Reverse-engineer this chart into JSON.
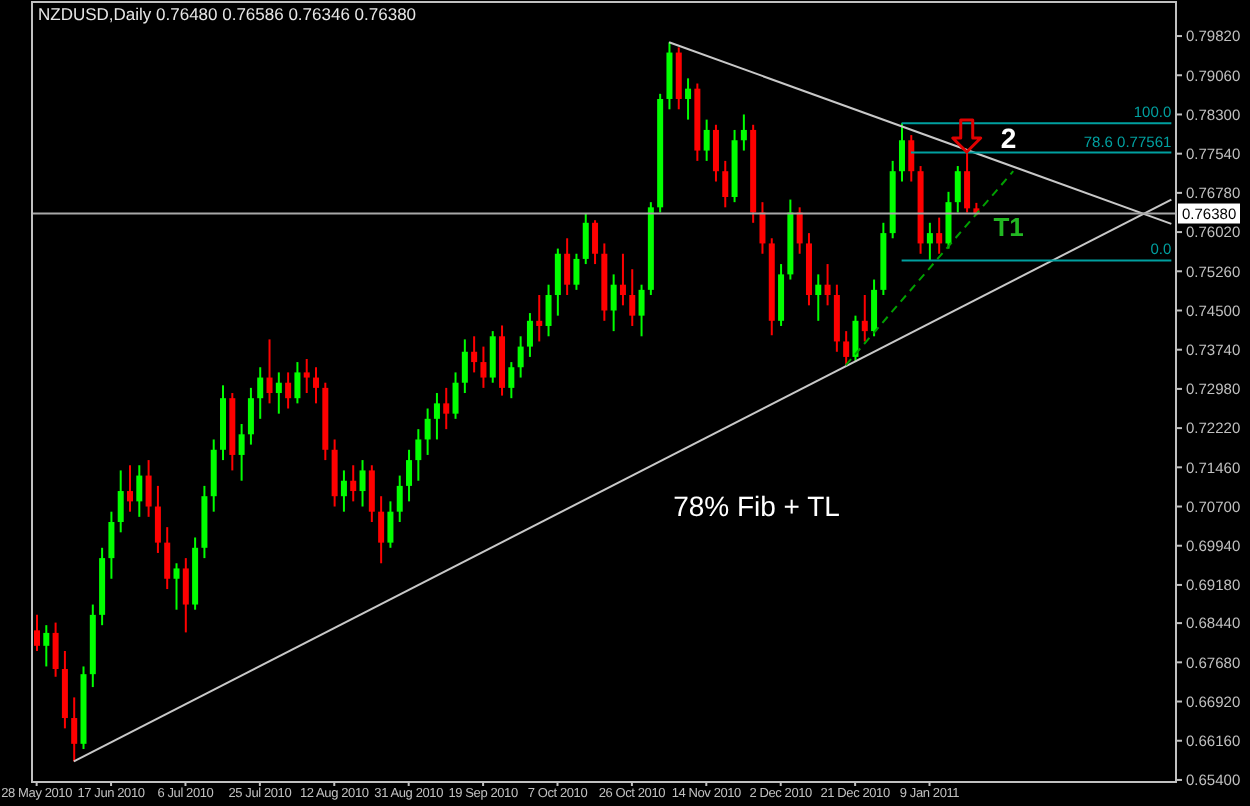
{
  "chart_data": {
    "type": "candlestick",
    "title": "NZDUSD,Daily 0.76480 0.76586 0.76346 0.76380",
    "categories": [
      "28 May 2010",
      null,
      null,
      null,
      null,
      null,
      null,
      null,
      "17 Jun 2010",
      null,
      null,
      null,
      null,
      null,
      null,
      null,
      "6 Jul 2010",
      null,
      null,
      null,
      null,
      null,
      null,
      null,
      "25 Jul 2010",
      null,
      null,
      null,
      null,
      null,
      null,
      null,
      "12 Aug 2010",
      null,
      null,
      null,
      null,
      null,
      null,
      null,
      "31 Aug 2010",
      null,
      null,
      null,
      null,
      null,
      null,
      null,
      "19 Sep 2010",
      null,
      null,
      null,
      null,
      null,
      null,
      null,
      "7 Oct 2010",
      null,
      null,
      null,
      null,
      null,
      null,
      null,
      "26 Oct 2010",
      null,
      null,
      null,
      null,
      null,
      null,
      null,
      "14 Nov 2010",
      null,
      null,
      null,
      null,
      null,
      null,
      null,
      "2 Dec 2010",
      null,
      null,
      null,
      null,
      null,
      null,
      null,
      "21 Dec 2010",
      null,
      null,
      null,
      null,
      null,
      null,
      null,
      "9 Jan 2011",
      null,
      null,
      null,
      null,
      null,
      null,
      null,
      null,
      null,
      null,
      null,
      null,
      null,
      null,
      null,
      null,
      null,
      null,
      null,
      null,
      null,
      null,
      null,
      null,
      null,
      null
    ],
    "ohlc": [
      [
        0.683,
        0.686,
        0.679,
        0.68
      ],
      [
        0.68,
        0.684,
        0.676,
        0.6825
      ],
      [
        0.6825,
        0.6845,
        0.674,
        0.6755
      ],
      [
        0.6755,
        0.679,
        0.664,
        0.666
      ],
      [
        0.666,
        0.67,
        0.6576,
        0.661
      ],
      [
        0.661,
        0.676,
        0.66,
        0.6745
      ],
      [
        0.6745,
        0.688,
        0.672,
        0.686
      ],
      [
        0.686,
        0.699,
        0.684,
        0.697
      ],
      [
        0.697,
        0.706,
        0.693,
        0.704
      ],
      [
        0.704,
        0.714,
        0.702,
        0.71
      ],
      [
        0.71,
        0.715,
        0.706,
        0.708
      ],
      [
        0.708,
        0.715,
        0.705,
        0.713
      ],
      [
        0.713,
        0.716,
        0.705,
        0.707
      ],
      [
        0.707,
        0.711,
        0.698,
        0.7
      ],
      [
        0.7,
        0.703,
        0.691,
        0.693
      ],
      [
        0.693,
        0.696,
        0.687,
        0.695
      ],
      [
        0.695,
        0.697,
        0.6826,
        0.688
      ],
      [
        0.688,
        0.701,
        0.687,
        0.699
      ],
      [
        0.699,
        0.711,
        0.697,
        0.709
      ],
      [
        0.709,
        0.72,
        0.706,
        0.718
      ],
      [
        0.718,
        0.7305,
        0.716,
        0.728
      ],
      [
        0.728,
        0.729,
        0.714,
        0.717
      ],
      [
        0.717,
        0.723,
        0.712,
        0.721
      ],
      [
        0.721,
        0.73,
        0.719,
        0.728
      ],
      [
        0.728,
        0.734,
        0.724,
        0.732
      ],
      [
        0.732,
        0.7394,
        0.727,
        0.729
      ],
      [
        0.729,
        0.733,
        0.725,
        0.731
      ],
      [
        0.731,
        0.733,
        0.726,
        0.728
      ],
      [
        0.728,
        0.735,
        0.727,
        0.733
      ],
      [
        0.733,
        0.7356,
        0.729,
        0.732
      ],
      [
        0.732,
        0.734,
        0.727,
        0.73
      ],
      [
        0.73,
        0.731,
        0.716,
        0.718
      ],
      [
        0.718,
        0.72,
        0.707,
        0.709
      ],
      [
        0.709,
        0.714,
        0.706,
        0.712
      ],
      [
        0.712,
        0.715,
        0.708,
        0.71
      ],
      [
        0.71,
        0.716,
        0.707,
        0.714
      ],
      [
        0.714,
        0.715,
        0.704,
        0.706
      ],
      [
        0.706,
        0.709,
        0.696,
        0.7
      ],
      [
        0.7,
        0.708,
        0.699,
        0.706
      ],
      [
        0.706,
        0.713,
        0.704,
        0.711
      ],
      [
        0.711,
        0.718,
        0.708,
        0.716
      ],
      [
        0.716,
        0.722,
        0.712,
        0.72
      ],
      [
        0.72,
        0.726,
        0.717,
        0.724
      ],
      [
        0.724,
        0.729,
        0.72,
        0.727
      ],
      [
        0.727,
        0.73,
        0.722,
        0.725
      ],
      [
        0.725,
        0.733,
        0.724,
        0.731
      ],
      [
        0.731,
        0.7394,
        0.729,
        0.737
      ],
      [
        0.737,
        0.74,
        0.733,
        0.735
      ],
      [
        0.735,
        0.738,
        0.73,
        0.732
      ],
      [
        0.732,
        0.741,
        0.731,
        0.74
      ],
      [
        0.74,
        0.7421,
        0.7285,
        0.73
      ],
      [
        0.73,
        0.735,
        0.728,
        0.734
      ],
      [
        0.734,
        0.74,
        0.732,
        0.738
      ],
      [
        0.738,
        0.7445,
        0.736,
        0.743
      ],
      [
        0.743,
        0.748,
        0.739,
        0.742
      ],
      [
        0.742,
        0.75,
        0.74,
        0.748
      ],
      [
        0.748,
        0.757,
        0.744,
        0.756
      ],
      [
        0.756,
        0.759,
        0.748,
        0.75
      ],
      [
        0.75,
        0.756,
        0.749,
        0.755
      ],
      [
        0.755,
        0.7638,
        0.754,
        0.762
      ],
      [
        0.762,
        0.7625,
        0.754,
        0.756
      ],
      [
        0.756,
        0.758,
        0.743,
        0.745
      ],
      [
        0.745,
        0.752,
        0.741,
        0.75
      ],
      [
        0.75,
        0.756,
        0.746,
        0.748
      ],
      [
        0.748,
        0.753,
        0.742,
        0.744
      ],
      [
        0.744,
        0.75,
        0.74,
        0.749
      ],
      [
        0.749,
        0.766,
        0.748,
        0.765
      ],
      [
        0.765,
        0.787,
        0.764,
        0.786
      ],
      [
        0.786,
        0.797,
        0.784,
        0.795
      ],
      [
        0.795,
        0.796,
        0.784,
        0.786
      ],
      [
        0.786,
        0.79,
        0.782,
        0.788
      ],
      [
        0.788,
        0.789,
        0.774,
        0.776
      ],
      [
        0.776,
        0.782,
        0.774,
        0.78
      ],
      [
        0.78,
        0.781,
        0.77,
        0.772
      ],
      [
        0.772,
        0.774,
        0.765,
        0.767
      ],
      [
        0.767,
        0.78,
        0.766,
        0.778
      ],
      [
        0.778,
        0.783,
        0.776,
        0.78
      ],
      [
        0.78,
        0.781,
        0.762,
        0.764
      ],
      [
        0.764,
        0.766,
        0.756,
        0.758
      ],
      [
        0.758,
        0.759,
        0.7402,
        0.743
      ],
      [
        0.743,
        0.754,
        0.742,
        0.752
      ],
      [
        0.752,
        0.7665,
        0.751,
        0.764
      ],
      [
        0.764,
        0.765,
        0.756,
        0.758
      ],
      [
        0.758,
        0.76,
        0.746,
        0.748
      ],
      [
        0.748,
        0.752,
        0.743,
        0.75
      ],
      [
        0.75,
        0.754,
        0.746,
        0.748
      ],
      [
        0.748,
        0.75,
        0.737,
        0.739
      ],
      [
        0.739,
        0.741,
        0.7344,
        0.736
      ],
      [
        0.736,
        0.744,
        0.735,
        0.743
      ],
      [
        0.743,
        0.748,
        0.739,
        0.741
      ],
      [
        0.741,
        0.751,
        0.74,
        0.749
      ],
      [
        0.749,
        0.762,
        0.748,
        0.76
      ],
      [
        0.76,
        0.774,
        0.759,
        0.772
      ],
      [
        0.772,
        0.7813,
        0.77,
        0.778
      ],
      [
        0.778,
        0.779,
        0.77,
        0.772
      ],
      [
        0.772,
        0.773,
        0.756,
        0.758
      ],
      [
        0.758,
        0.762,
        0.7547,
        0.76
      ],
      [
        0.76,
        0.763,
        0.756,
        0.758
      ],
      [
        0.758,
        0.768,
        0.757,
        0.766
      ],
      [
        0.766,
        0.773,
        0.764,
        0.772
      ],
      [
        0.772,
        0.7756,
        0.764,
        0.7648
      ],
      [
        0.7648,
        0.76586,
        0.76346,
        0.7638
      ],
      null,
      null,
      null,
      null,
      null,
      null,
      null,
      null,
      null,
      null,
      null,
      null,
      null,
      null,
      null,
      null,
      null,
      null,
      null,
      null,
      null
    ],
    "colors": [
      "#ff0000",
      "#00ff00",
      "#ff0000",
      "#ff0000",
      "#ff0000",
      "#00ff00",
      "#00ff00",
      "#00ff00",
      "#00ff00",
      "#00ff00",
      "#ff0000",
      "#00ff00",
      "#ff0000",
      "#ff0000",
      "#ff0000",
      "#00ff00",
      "#ff0000",
      "#00ff00",
      "#00ff00",
      "#00ff00",
      "#00ff00",
      "#ff0000",
      "#00ff00",
      "#00ff00",
      "#00ff00",
      "#ff0000",
      "#00ff00",
      "#ff0000",
      "#00ff00",
      "#ff0000",
      "#ff0000",
      "#ff0000",
      "#ff0000",
      "#00ff00",
      "#ff0000",
      "#00ff00",
      "#ff0000",
      "#ff0000",
      "#00ff00",
      "#00ff00",
      "#00ff00",
      "#00ff00",
      "#00ff00",
      "#00ff00",
      "#ff0000",
      "#00ff00",
      "#00ff00",
      "#ff0000",
      "#ff0000",
      "#00ff00",
      "#ff0000",
      "#00ff00",
      "#00ff00",
      "#00ff00",
      "#ff0000",
      "#00ff00",
      "#00ff00",
      "#ff0000",
      "#00ff00",
      "#00ff00",
      "#ff0000",
      "#ff0000",
      "#00ff00",
      "#ff0000",
      "#ff0000",
      "#00ff00",
      "#00ff00",
      "#00ff00",
      "#00ff00",
      "#ff0000",
      "#00ff00",
      "#ff0000",
      "#00ff00",
      "#ff0000",
      "#ff0000",
      "#00ff00",
      "#00ff00",
      "#ff0000",
      "#ff0000",
      "#ff0000",
      "#00ff00",
      "#00ff00",
      "#ff0000",
      "#ff0000",
      "#00ff00",
      "#ff0000",
      "#ff0000",
      "#ff0000",
      "#00ff00",
      "#ff0000",
      "#00ff00",
      "#00ff00",
      "#00ff00",
      "#00ff00",
      "#ff0000",
      "#ff0000",
      "#00ff00",
      "#ff0000",
      "#00ff00",
      "#00ff00",
      "#ff0000",
      "#ff0000",
      null,
      null,
      null,
      null,
      null,
      null,
      null,
      null,
      null,
      null,
      null,
      null,
      null,
      null,
      null,
      null,
      null,
      null,
      null,
      null,
      null
    ],
    "series": [
      {
        "type": "line",
        "color": "#c8c8c8",
        "values": [
          null,
          null,
          null,
          null,
          null,
          null,
          null,
          null,
          null,
          null,
          null,
          null,
          null,
          null,
          null,
          null,
          null,
          null,
          null,
          null,
          null,
          null,
          null,
          null,
          null,
          null,
          null,
          null,
          null,
          null,
          null,
          null,
          null,
          null,
          null,
          null,
          null,
          null,
          null,
          null,
          null,
          null,
          null,
          null,
          null,
          null,
          null,
          null,
          null,
          null,
          null,
          null,
          null,
          null,
          null,
          null,
          null,
          null,
          null,
          null,
          null,
          null,
          null,
          null,
          null,
          null,
          null,
          null,
          0.797,
          null,
          null,
          null,
          null,
          null,
          null,
          null,
          null,
          null,
          null,
          null,
          null,
          null,
          null,
          null,
          null,
          null,
          null,
          null,
          null,
          null,
          null,
          null,
          null,
          null,
          null,
          null,
          null,
          null,
          null,
          null,
          null,
          null,
          null,
          null,
          null,
          null,
          null,
          null,
          null,
          null,
          null,
          null,
          null,
          null,
          null,
          null,
          null,
          null,
          null,
          null,
          null,
          null,
          0.7618
        ]
      },
      {
        "type": "line",
        "color": "#c8c8c8",
        "values": [
          null,
          null,
          null,
          null,
          0.6576,
          null,
          null,
          null,
          null,
          null,
          null,
          null,
          null,
          null,
          null,
          null,
          null,
          null,
          null,
          null,
          null,
          null,
          null,
          null,
          null,
          null,
          null,
          null,
          null,
          null,
          null,
          null,
          null,
          null,
          null,
          null,
          null,
          null,
          null,
          null,
          null,
          null,
          null,
          null,
          null,
          null,
          null,
          null,
          null,
          null,
          null,
          null,
          null,
          null,
          null,
          null,
          null,
          null,
          null,
          null,
          null,
          null,
          null,
          null,
          null,
          null,
          null,
          null,
          null,
          null,
          null,
          null,
          null,
          null,
          null,
          null,
          null,
          null,
          null,
          null,
          null,
          null,
          null,
          null,
          null,
          null,
          null,
          null,
          null,
          null,
          null,
          null,
          null,
          null,
          null,
          null,
          null,
          null,
          null,
          null,
          null,
          null,
          null,
          null,
          null,
          null,
          null,
          null,
          null,
          null,
          null,
          null,
          null,
          null,
          null,
          null,
          null,
          null,
          null,
          null,
          null,
          null,
          0.7665
        ]
      },
      {
        "type": "line",
        "color": "#00a000",
        "line_style": "dashed",
        "values": [
          null,
          null,
          null,
          null,
          null,
          null,
          null,
          null,
          null,
          null,
          null,
          null,
          null,
          null,
          null,
          null,
          null,
          null,
          null,
          null,
          null,
          null,
          null,
          null,
          null,
          null,
          null,
          null,
          null,
          null,
          null,
          null,
          null,
          null,
          null,
          null,
          null,
          null,
          null,
          null,
          null,
          null,
          null,
          null,
          null,
          null,
          null,
          null,
          null,
          null,
          null,
          null,
          null,
          null,
          null,
          null,
          null,
          null,
          null,
          null,
          null,
          null,
          null,
          null,
          null,
          null,
          null,
          null,
          null,
          null,
          null,
          null,
          null,
          null,
          null,
          null,
          null,
          null,
          null,
          null,
          null,
          null,
          null,
          null,
          null,
          null,
          null,
          0.7344,
          null,
          null,
          null,
          null,
          null,
          null,
          null,
          null,
          null,
          null,
          null,
          null,
          null,
          null,
          null,
          null,
          null,
          0.772,
          null,
          null,
          null,
          null,
          null,
          null,
          null,
          null,
          null,
          null,
          null,
          null,
          null,
          null,
          null,
          null,
          null
        ]
      },
      {
        "type": "line",
        "name": "100.0",
        "color": "#00a0a0",
        "values": [
          null,
          null,
          null,
          null,
          null,
          null,
          null,
          null,
          null,
          null,
          null,
          null,
          null,
          null,
          null,
          null,
          null,
          null,
          null,
          null,
          null,
          null,
          null,
          null,
          null,
          null,
          null,
          null,
          null,
          null,
          null,
          null,
          null,
          null,
          null,
          null,
          null,
          null,
          null,
          null,
          null,
          null,
          null,
          null,
          null,
          null,
          null,
          null,
          null,
          null,
          null,
          null,
          null,
          null,
          null,
          null,
          null,
          null,
          null,
          null,
          null,
          null,
          null,
          null,
          null,
          null,
          null,
          null,
          null,
          null,
          null,
          null,
          null,
          null,
          null,
          null,
          null,
          null,
          null,
          null,
          null,
          null,
          null,
          null,
          null,
          null,
          null,
          null,
          null,
          null,
          null,
          null,
          null,
          0.7813,
          null,
          null,
          null,
          null,
          null,
          null,
          null,
          null,
          null,
          null,
          null,
          null,
          null,
          null,
          null,
          null,
          null,
          null,
          null,
          null,
          null,
          null,
          null,
          null,
          null,
          null,
          null,
          null,
          0.7813
        ]
      },
      {
        "type": "line",
        "name": "78.6 0.77561",
        "color": "#00a0a0",
        "values": [
          null,
          null,
          null,
          null,
          null,
          null,
          null,
          null,
          null,
          null,
          null,
          null,
          null,
          null,
          null,
          null,
          null,
          null,
          null,
          null,
          null,
          null,
          null,
          null,
          null,
          null,
          null,
          null,
          null,
          null,
          null,
          null,
          null,
          null,
          null,
          null,
          null,
          null,
          null,
          null,
          null,
          null,
          null,
          null,
          null,
          null,
          null,
          null,
          null,
          null,
          null,
          null,
          null,
          null,
          null,
          null,
          null,
          null,
          null,
          null,
          null,
          null,
          null,
          null,
          null,
          null,
          null,
          null,
          null,
          null,
          null,
          null,
          null,
          null,
          null,
          null,
          null,
          null,
          null,
          null,
          null,
          null,
          null,
          null,
          null,
          null,
          null,
          null,
          null,
          null,
          null,
          null,
          null,
          null,
          0.77561,
          null,
          null,
          null,
          null,
          null,
          null,
          null,
          null,
          null,
          null,
          null,
          null,
          null,
          null,
          null,
          null,
          null,
          null,
          null,
          null,
          null,
          null,
          null,
          null,
          null,
          null,
          null,
          0.77561
        ]
      },
      {
        "type": "line",
        "name": "0.0",
        "color": "#00a0a0",
        "values": [
          null,
          null,
          null,
          null,
          null,
          null,
          null,
          null,
          null,
          null,
          null,
          null,
          null,
          null,
          null,
          null,
          null,
          null,
          null,
          null,
          null,
          null,
          null,
          null,
          null,
          null,
          null,
          null,
          null,
          null,
          null,
          null,
          null,
          null,
          null,
          null,
          null,
          null,
          null,
          null,
          null,
          null,
          null,
          null,
          null,
          null,
          null,
          null,
          null,
          null,
          null,
          null,
          null,
          null,
          null,
          null,
          null,
          null,
          null,
          null,
          null,
          null,
          null,
          null,
          null,
          null,
          null,
          null,
          null,
          null,
          null,
          null,
          null,
          null,
          null,
          null,
          null,
          null,
          null,
          null,
          null,
          null,
          null,
          null,
          null,
          null,
          null,
          null,
          null,
          null,
          null,
          null,
          null,
          0.7547,
          null,
          null,
          null,
          null,
          null,
          null,
          null,
          null,
          null,
          null,
          null,
          null,
          null,
          null,
          null,
          null,
          null,
          null,
          null,
          null,
          null,
          null,
          null,
          null,
          null,
          null,
          null,
          null,
          0.7547
        ]
      }
    ],
    "ylim": [
      0.6536,
      0.8048
    ],
    "yticks": [
      {
        "value": 0.7982,
        "label": "0.79820"
      },
      {
        "value": 0.7906,
        "label": "0.79060"
      },
      {
        "value": 0.783,
        "label": "0.78300"
      },
      {
        "value": 0.7754,
        "label": "0.77540"
      },
      {
        "value": 0.7678,
        "label": "0.76780"
      },
      {
        "value": 0.7602,
        "label": "0.76020"
      },
      {
        "value": 0.7526,
        "label": "0.75260"
      },
      {
        "value": 0.745,
        "label": "0.74500"
      },
      {
        "value": 0.7374,
        "label": "0.73740"
      },
      {
        "value": 0.7298,
        "label": "0.72980"
      },
      {
        "value": 0.7222,
        "label": "0.72220"
      },
      {
        "value": 0.7146,
        "label": "0.71460"
      },
      {
        "value": 0.707,
        "label": "0.70700"
      },
      {
        "value": 0.6994,
        "label": "0.69940"
      },
      {
        "value": 0.6918,
        "label": "0.69180"
      },
      {
        "value": 0.6844,
        "label": "0.68440"
      },
      {
        "value": 0.6768,
        "label": "0.67680"
      },
      {
        "value": 0.6692,
        "label": "0.66920"
      },
      {
        "value": 0.6616,
        "label": "0.66160"
      },
      {
        "value": 0.654,
        "label": "0.65400"
      }
    ],
    "ref_lines": [
      {
        "axis": "y",
        "value": 0.7638,
        "label": "0.76380",
        "color": "#a8a8a8"
      }
    ],
    "annotations": [
      "2",
      "T1",
      "78% Fib + TL"
    ]
  }
}
